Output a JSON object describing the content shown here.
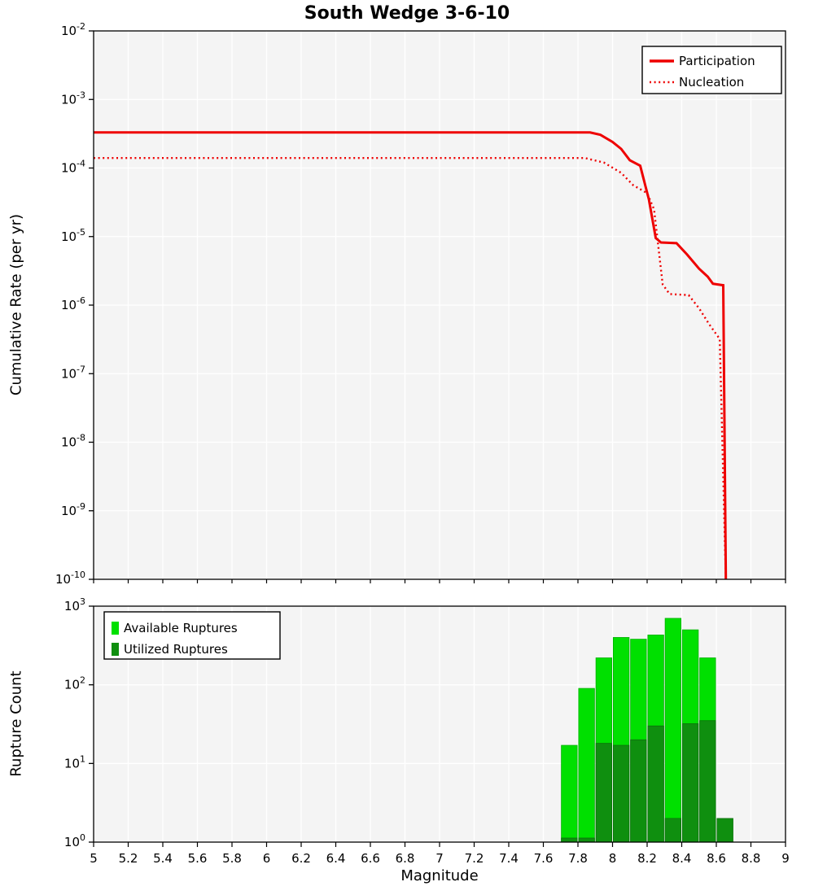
{
  "title": "South Wedge 3-6-10",
  "chart_data": [
    {
      "id": "rate",
      "type": "line",
      "title": "South Wedge 3-6-10",
      "ylabel": "Cumulative Rate (per yr)",
      "x_range": [
        5,
        9
      ],
      "y_scale": "log",
      "y_log_range": [
        -10,
        -2
      ],
      "y_tick_exponents": [
        -2,
        -3,
        -4,
        -5,
        -6,
        -7,
        -8,
        -9,
        -10
      ],
      "grid": true,
      "legend_position": "top-right",
      "series": [
        {
          "name": "Participation",
          "style": "solid",
          "color": "#ee0000",
          "points": [
            [
              5.0,
              0.00033
            ],
            [
              7.87,
              0.00033
            ],
            [
              7.93,
              0.000305
            ],
            [
              8.0,
              0.00024
            ],
            [
              8.05,
              0.00019
            ],
            [
              8.1,
              0.00013
            ],
            [
              8.16,
              0.000108
            ],
            [
              8.21,
              3.5e-05
            ],
            [
              8.25,
              9.5e-06
            ],
            [
              8.28,
              8.2e-06
            ],
            [
              8.37,
              8e-06
            ],
            [
              8.43,
              5.5e-06
            ],
            [
              8.5,
              3.4e-06
            ],
            [
              8.55,
              2.6e-06
            ],
            [
              8.58,
              2.05e-06
            ],
            [
              8.64,
              1.95e-06
            ],
            [
              8.655,
              1e-10
            ]
          ]
        },
        {
          "name": "Nucleation",
          "style": "dotted",
          "color": "#ee0000",
          "points": [
            [
              5.0,
              0.00014
            ],
            [
              7.84,
              0.00014
            ],
            [
              7.95,
              0.00012
            ],
            [
              8.05,
              8.5e-05
            ],
            [
              8.12,
              5.6e-05
            ],
            [
              8.2,
              4.3e-05
            ],
            [
              8.24,
              2.5e-05
            ],
            [
              8.29,
              2e-06
            ],
            [
              8.33,
              1.45e-06
            ],
            [
              8.44,
              1.4e-06
            ],
            [
              8.5,
              9e-07
            ],
            [
              8.56,
              5.2e-07
            ],
            [
              8.62,
              3.2e-07
            ],
            [
              8.655,
              1e-10
            ]
          ]
        }
      ]
    },
    {
      "id": "count",
      "type": "bar",
      "ylabel": "Rupture Count",
      "xlabel": "Magnitude",
      "x_range": [
        5,
        9
      ],
      "y_scale": "log",
      "y_log_range": [
        0,
        3
      ],
      "y_tick_exponents": [
        0,
        1,
        2,
        3
      ],
      "x_tick_values": [
        5,
        5.2,
        5.4,
        5.6,
        5.8,
        6,
        6.2,
        6.4,
        6.6,
        6.8,
        7,
        7.2,
        7.4,
        7.6,
        7.8,
        8,
        8.2,
        8.4,
        8.6,
        8.8,
        9
      ],
      "x_tick_labels": [
        "5",
        "5.2",
        "5.4",
        "5.6",
        "5.8",
        "6",
        "6.2",
        "6.4",
        "6.6",
        "6.8",
        "7",
        "7.2",
        "7.4",
        "7.6",
        "7.8",
        "8",
        "8.2",
        "8.4",
        "8.6",
        "8.8",
        "9"
      ],
      "bin_width": 0.1,
      "bin_centers": [
        7.75,
        7.85,
        7.95,
        8.05,
        8.15,
        8.25,
        8.35,
        8.45,
        8.55,
        8.65
      ],
      "grid": true,
      "legend_position": "top-left",
      "series": [
        {
          "name": "Available Ruptures",
          "color": "#00e000",
          "edge": "#00b000",
          "values": [
            17,
            90,
            220,
            400,
            380,
            430,
            700,
            500,
            220,
            2
          ]
        },
        {
          "name": "Utilized Ruptures",
          "color": "#0f8f0f",
          "edge": "#0a6e0a",
          "values": [
            1,
            1,
            18,
            17,
            20,
            30,
            2,
            32,
            35,
            2
          ]
        }
      ]
    }
  ]
}
